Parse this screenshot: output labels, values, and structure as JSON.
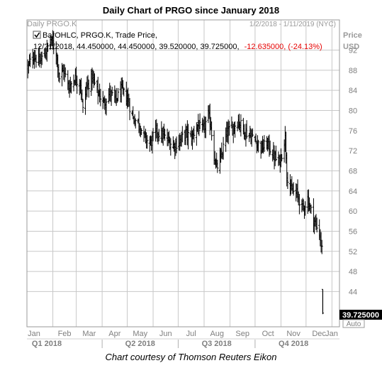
{
  "title": "Daily Chart of PRGO since January 2018",
  "credit": "Chart courtesy of Thomson Reuters Eikon",
  "header": {
    "symbol_tag": "Daily PRGO.K",
    "date_range": "1/2/2018 - 1/11/2019 (NYC)",
    "legend_line1": "BarOHLC, PRGO.K, Trade Price,",
    "legend_line2_prefix": "12/21/2018, 44.450000, 44.450000, 39.520000, 39.725000,",
    "legend_change": "-12.635000, (-24.13%)",
    "price_label": "Price",
    "currency_label": "USD",
    "last_price": "39.725000",
    "auto_label": "Auto"
  },
  "colors": {
    "bars": "#000000",
    "change_negative": "#e60000",
    "grid": "#c8c8c8",
    "axis_text": "#7f7f7f",
    "price_box": "#000000"
  },
  "chart_data": {
    "type": "ohlc",
    "symbol": "PRGO.K",
    "ylim": [
      37,
      98
    ],
    "y_ticks": [
      44,
      48,
      52,
      56,
      60,
      64,
      68,
      72,
      76,
      80,
      84,
      88,
      92
    ],
    "x_months": [
      "Jan",
      "Feb",
      "Mar",
      "Apr",
      "May",
      "Jun",
      "Jul",
      "Aug",
      "Sep",
      "Oct",
      "Nov",
      "Dec",
      "Jan"
    ],
    "x_quarters": [
      "Q1 2018",
      "Q2 2018",
      "Q3 2018",
      "Q4 2018"
    ],
    "grid": true,
    "last_bar": {
      "date": "12/21/2018",
      "open": 44.45,
      "high": 44.45,
      "low": 39.52,
      "close": 39.725
    },
    "close_series": [
      {
        "x": "2018-01-02",
        "close": 88.5
      },
      {
        "x": "2018-01-09",
        "close": 91.0
      },
      {
        "x": "2018-01-16",
        "close": 89.5
      },
      {
        "x": "2018-01-23",
        "close": 91.5
      },
      {
        "x": "2018-01-30",
        "close": 94.0
      },
      {
        "x": "2018-02-05",
        "close": 91.5
      },
      {
        "x": "2018-02-09",
        "close": 86.5
      },
      {
        "x": "2018-02-14",
        "close": 88.0
      },
      {
        "x": "2018-02-20",
        "close": 84.5
      },
      {
        "x": "2018-02-27",
        "close": 86.5
      },
      {
        "x": "2018-03-06",
        "close": 85.5
      },
      {
        "x": "2018-03-09",
        "close": 80.0
      },
      {
        "x": "2018-03-13",
        "close": 84.5
      },
      {
        "x": "2018-03-20",
        "close": 86.5
      },
      {
        "x": "2018-03-27",
        "close": 83.5
      },
      {
        "x": "2018-04-03",
        "close": 81.5
      },
      {
        "x": "2018-04-10",
        "close": 83.5
      },
      {
        "x": "2018-04-17",
        "close": 82.0
      },
      {
        "x": "2018-04-24",
        "close": 84.0
      },
      {
        "x": "2018-05-01",
        "close": 82.5
      },
      {
        "x": "2018-05-08",
        "close": 78.5
      },
      {
        "x": "2018-05-15",
        "close": 77.5
      },
      {
        "x": "2018-05-22",
        "close": 74.5
      },
      {
        "x": "2018-05-29",
        "close": 73.5
      },
      {
        "x": "2018-06-05",
        "close": 76.0
      },
      {
        "x": "2018-06-12",
        "close": 75.0
      },
      {
        "x": "2018-06-19",
        "close": 74.0
      },
      {
        "x": "2018-06-26",
        "close": 73.0
      },
      {
        "x": "2018-07-03",
        "close": 74.0
      },
      {
        "x": "2018-07-10",
        "close": 75.5
      },
      {
        "x": "2018-07-17",
        "close": 74.5
      },
      {
        "x": "2018-07-24",
        "close": 77.0
      },
      {
        "x": "2018-07-31",
        "close": 76.0
      },
      {
        "x": "2018-08-06",
        "close": 79.0
      },
      {
        "x": "2018-08-09",
        "close": 77.0
      },
      {
        "x": "2018-08-13",
        "close": 71.0
      },
      {
        "x": "2018-08-16",
        "close": 68.5
      },
      {
        "x": "2018-08-21",
        "close": 70.5
      },
      {
        "x": "2018-08-28",
        "close": 75.5
      },
      {
        "x": "2018-09-04",
        "close": 76.5
      },
      {
        "x": "2018-09-11",
        "close": 78.0
      },
      {
        "x": "2018-09-18",
        "close": 76.0
      },
      {
        "x": "2018-09-25",
        "close": 75.0
      },
      {
        "x": "2018-10-02",
        "close": 74.0
      },
      {
        "x": "2018-10-09",
        "close": 72.5
      },
      {
        "x": "2018-10-16",
        "close": 73.5
      },
      {
        "x": "2018-10-23",
        "close": 71.0
      },
      {
        "x": "2018-10-30",
        "close": 69.5
      },
      {
        "x": "2018-11-02",
        "close": 71.5
      },
      {
        "x": "2018-11-06",
        "close": 75.0
      },
      {
        "x": "2018-11-08",
        "close": 67.5
      },
      {
        "x": "2018-11-13",
        "close": 64.0
      },
      {
        "x": "2018-11-20",
        "close": 63.5
      },
      {
        "x": "2018-11-27",
        "close": 60.5
      },
      {
        "x": "2018-12-03",
        "close": 62.5
      },
      {
        "x": "2018-12-07",
        "close": 60.0
      },
      {
        "x": "2018-12-12",
        "close": 57.5
      },
      {
        "x": "2018-12-17",
        "close": 55.5
      },
      {
        "x": "2018-12-20",
        "close": 52.4
      },
      {
        "x": "2018-12-21",
        "close": 39.725
      }
    ]
  }
}
